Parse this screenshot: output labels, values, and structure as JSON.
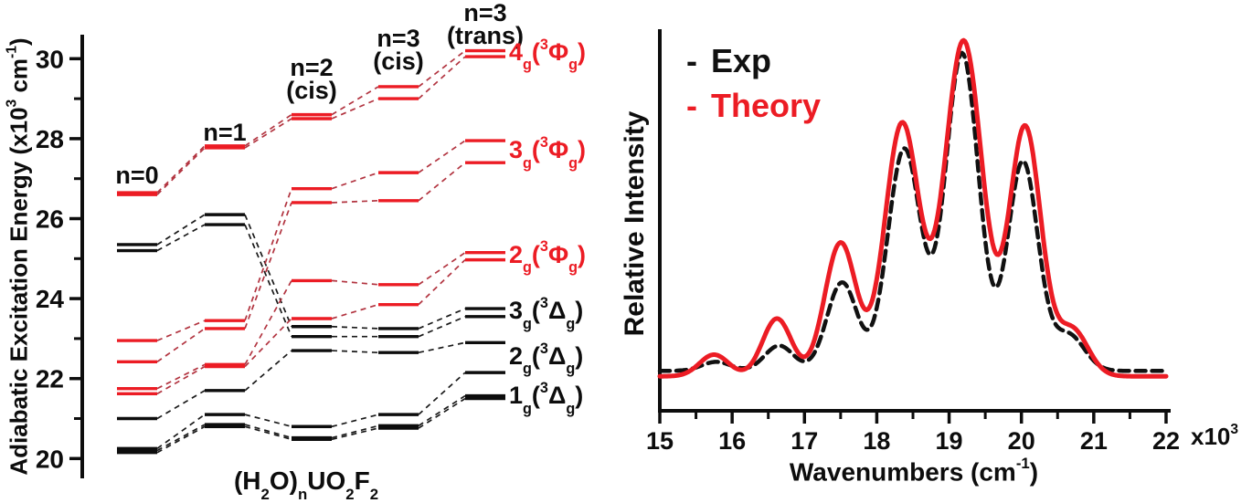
{
  "palette": {
    "red_bar": "#ec1c24",
    "red_connector": "#b23440",
    "black": "#0d0d0d",
    "black_connector": "#1a1a1a",
    "background": "#ffffff",
    "exp_color": "#111111",
    "theory_color": "#ec1c24"
  },
  "chart_data": [
    {
      "id": "energy-level-diagram",
      "type": "line",
      "title": "",
      "ylabel": "Adiabatic Excitation Energy (x10^3 cm^-1)",
      "ylabel_parts": [
        "Adiabatic Excitation Energy (x10",
        "3",
        " cm",
        "-1",
        ")"
      ],
      "xlabel": "(H2O)nUO2F2",
      "xlabel_parts": [
        "(H",
        "2",
        "O)",
        "n",
        "UO",
        "2",
        "F",
        "2"
      ],
      "ylim": [
        19.7,
        30.6
      ],
      "yticks_major": [
        20,
        22,
        24,
        26,
        28,
        30
      ],
      "yticks_minor": [
        21,
        23,
        25,
        27,
        29
      ],
      "grid": false,
      "categories": [
        "n=0",
        "n=1",
        "n=2 (cis)",
        "n=3 (cis)",
        "n=3 (trans)"
      ],
      "column_headers": [
        {
          "lines": [
            "n=0"
          ]
        },
        {
          "lines": [
            "n=1"
          ]
        },
        {
          "lines": [
            "n=2",
            "(cis)"
          ]
        },
        {
          "lines": [
            "n=3",
            "(cis)"
          ]
        },
        {
          "lines": [
            "n=3",
            "(trans)"
          ]
        }
      ],
      "series": [
        {
          "name": "3g(3Dg) a",
          "color": "black",
          "values": [
            25.35,
            26.1,
            23.3,
            23.25,
            23.75
          ]
        },
        {
          "name": "3g(3Dg) b",
          "color": "black",
          "values": [
            25.2,
            25.85,
            23.05,
            23.05,
            23.55
          ]
        },
        {
          "name": "2g(3Dg) a",
          "color": "black",
          "values": [
            21.0,
            21.7,
            22.7,
            22.65,
            22.9
          ]
        },
        {
          "name": "2g(3Dg) b",
          "color": "black",
          "values": [
            20.25,
            21.1,
            20.8,
            21.1,
            22.15
          ]
        },
        {
          "name": "1g(3Dg) a",
          "color": "black",
          "values": [
            20.2,
            20.85,
            20.52,
            20.82,
            21.57
          ]
        },
        {
          "name": "1g(3Dg) b",
          "color": "black",
          "values": [
            20.15,
            20.8,
            20.48,
            20.76,
            21.5
          ]
        },
        {
          "name": "2g(3Fg) a",
          "color": "red",
          "values": [
            21.75,
            22.35,
            24.45,
            24.35,
            25.15
          ]
        },
        {
          "name": "2g(3Fg) b",
          "color": "red",
          "values": [
            21.62,
            22.3,
            23.5,
            23.85,
            24.97
          ]
        },
        {
          "name": "3g(3Fg) a",
          "color": "red",
          "values": [
            22.95,
            23.45,
            26.75,
            27.15,
            27.95
          ]
        },
        {
          "name": "3g(3Fg) b",
          "color": "red",
          "values": [
            22.42,
            23.25,
            26.4,
            26.45,
            27.4
          ]
        },
        {
          "name": "4g(3Fg) a",
          "color": "red",
          "values": [
            26.65,
            27.82,
            28.6,
            29.3,
            30.2
          ]
        },
        {
          "name": "4g(3Fg) b",
          "color": "red",
          "values": [
            26.6,
            27.77,
            28.5,
            29.0,
            30.05
          ]
        }
      ],
      "state_labels": [
        {
          "parts": [
            "4",
            "g",
            "(",
            "3",
            "Φ",
            "g",
            ")"
          ],
          "styles": [
            "n",
            "sub",
            "n",
            "sup",
            "n",
            "sub",
            "n"
          ],
          "energy": 30.12,
          "color": "red"
        },
        {
          "parts": [
            "3",
            "g",
            "(",
            "3",
            "Φ",
            "g",
            ")"
          ],
          "styles": [
            "n",
            "sub",
            "n",
            "sup",
            "n",
            "sub",
            "n"
          ],
          "energy": 27.67,
          "color": "red"
        },
        {
          "parts": [
            "2",
            "g",
            "(",
            "3",
            "Φ",
            "g",
            ")"
          ],
          "styles": [
            "n",
            "sub",
            "n",
            "sup",
            "n",
            "sub",
            "n"
          ],
          "energy": 25.06,
          "color": "red"
        },
        {
          "parts": [
            "3",
            "g",
            "(",
            "3",
            "Δ",
            "g",
            ")"
          ],
          "styles": [
            "n",
            "sub",
            "n",
            "sup",
            "n",
            "sub",
            "n"
          ],
          "energy": 23.65,
          "color": "black"
        },
        {
          "parts": [
            "2",
            "g",
            "(",
            "3",
            "Δ",
            "g",
            ")"
          ],
          "styles": [
            "n",
            "sub",
            "n",
            "sup",
            "n",
            "sub",
            "n"
          ],
          "energy": 22.52,
          "color": "black"
        },
        {
          "parts": [
            "1",
            "g",
            "(",
            "3",
            "Δ",
            "g",
            ")"
          ],
          "styles": [
            "n",
            "sub",
            "n",
            "sup",
            "n",
            "sub",
            "n"
          ],
          "energy": 21.53,
          "color": "black"
        }
      ]
    },
    {
      "id": "spectrum",
      "type": "line",
      "title": "",
      "ylabel": "Relative Intensity",
      "xlabel": "Wavenumbers (cm-1)",
      "xlabel_parts": [
        "Wavenumbers (cm",
        "-1",
        ")"
      ],
      "x_scale_parts": [
        "x10",
        "3"
      ],
      "xlim": [
        15,
        22
      ],
      "xticks": [
        15,
        16,
        17,
        18,
        19,
        20,
        21,
        22
      ],
      "xticks_minor": [
        15.5,
        16.5,
        17.5,
        18.5,
        19.5,
        20.5,
        21.5
      ],
      "grid": false,
      "legend_position": "top-left",
      "legend": [
        {
          "dash": "-",
          "label": "Exp",
          "color": "#111111",
          "style": "dashed"
        },
        {
          "dash": "-",
          "label": "Theory",
          "color": "#ec1c24",
          "style": "solid"
        }
      ],
      "series": [
        {
          "name": "Exp",
          "style": "dashed",
          "color": "#111111",
          "baseline": 0.055,
          "peaks": [
            [
              15.78,
              0.025,
              0.2
            ],
            [
              16.65,
              0.07,
              0.2
            ],
            [
              17.52,
              0.245,
              0.21
            ],
            [
              18.38,
              0.615,
              0.23
            ],
            [
              19.18,
              0.88,
              0.23
            ],
            [
              20.02,
              0.58,
              0.21
            ],
            [
              20.65,
              0.1,
              0.22
            ]
          ]
        },
        {
          "name": "Theory",
          "style": "solid",
          "color": "#ec1c24",
          "baseline": 0.04,
          "peaks": [
            [
              15.75,
              0.06,
              0.2
            ],
            [
              16.62,
              0.16,
              0.2
            ],
            [
              17.5,
              0.37,
              0.22
            ],
            [
              18.35,
              0.7,
              0.24
            ],
            [
              19.2,
              0.93,
              0.26
            ],
            [
              20.05,
              0.69,
              0.22
            ],
            [
              20.7,
              0.13,
              0.22
            ]
          ]
        }
      ]
    }
  ]
}
